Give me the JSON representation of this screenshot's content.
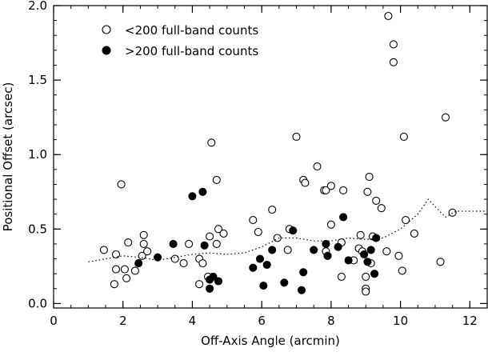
{
  "chart_data": {
    "type": "scatter",
    "title": "",
    "xlabel": "Off-Axis Angle (arcmin)",
    "ylabel": "Positional Offset (arcsec)",
    "xlim": [
      0,
      12.5
    ],
    "ylim": [
      -0.03,
      2.0
    ],
    "grid": false,
    "legend_position": "top-left",
    "x_major_ticks": [
      0,
      2,
      4,
      6,
      8,
      10,
      12
    ],
    "x_minor_step": 0.5,
    "x_tick_labels": [
      "0",
      "2",
      "4",
      "6",
      "8",
      "10",
      "12"
    ],
    "y_major_ticks": [
      0.0,
      0.5,
      1.0,
      1.5,
      2.0
    ],
    "y_minor_step": 0.1,
    "y_tick_labels": [
      "0.0",
      "0.5",
      "1.0",
      "1.5",
      "2.0"
    ],
    "series": [
      {
        "name": "<200 full-band counts",
        "marker": "open-circle",
        "color": "#000000",
        "points": [
          [
            1.45,
            0.36
          ],
          [
            1.75,
            0.13
          ],
          [
            1.8,
            0.33
          ],
          [
            1.8,
            0.23
          ],
          [
            1.95,
            0.8
          ],
          [
            2.05,
            0.23
          ],
          [
            2.1,
            0.17
          ],
          [
            2.15,
            0.41
          ],
          [
            2.35,
            0.22
          ],
          [
            2.55,
            0.32
          ],
          [
            2.6,
            0.46
          ],
          [
            2.6,
            0.4
          ],
          [
            2.7,
            0.35
          ],
          [
            3.5,
            0.3
          ],
          [
            3.75,
            0.27
          ],
          [
            3.9,
            0.4
          ],
          [
            4.2,
            0.3
          ],
          [
            4.2,
            0.13
          ],
          [
            4.3,
            0.27
          ],
          [
            4.45,
            0.18
          ],
          [
            4.5,
            0.45
          ],
          [
            4.55,
            1.08
          ],
          [
            4.7,
            0.4
          ],
          [
            4.7,
            0.83
          ],
          [
            4.75,
            0.5
          ],
          [
            4.9,
            0.47
          ],
          [
            5.75,
            0.56
          ],
          [
            5.9,
            0.48
          ],
          [
            6.3,
            0.63
          ],
          [
            6.45,
            0.44
          ],
          [
            6.75,
            0.36
          ],
          [
            6.8,
            0.5
          ],
          [
            7.0,
            1.12
          ],
          [
            7.2,
            0.83
          ],
          [
            7.25,
            0.81
          ],
          [
            7.6,
            0.92
          ],
          [
            7.8,
            0.76
          ],
          [
            7.85,
            0.76
          ],
          [
            7.85,
            0.35
          ],
          [
            7.9,
            0.32
          ],
          [
            8.0,
            0.79
          ],
          [
            8.0,
            0.53
          ],
          [
            8.3,
            0.41
          ],
          [
            8.3,
            0.18
          ],
          [
            8.35,
            0.76
          ],
          [
            8.65,
            0.29
          ],
          [
            8.8,
            0.37
          ],
          [
            8.85,
            0.46
          ],
          [
            8.9,
            0.35
          ],
          [
            9.0,
            0.18
          ],
          [
            9.0,
            0.1
          ],
          [
            9.0,
            0.08
          ],
          [
            9.05,
            0.75
          ],
          [
            9.1,
            0.85
          ],
          [
            9.15,
            0.27
          ],
          [
            9.2,
            0.45
          ],
          [
            9.3,
            0.69
          ],
          [
            9.45,
            0.64
          ],
          [
            9.6,
            0.35
          ],
          [
            9.65,
            1.93
          ],
          [
            9.8,
            1.74
          ],
          [
            9.8,
            1.62
          ],
          [
            9.95,
            0.32
          ],
          [
            10.05,
            0.22
          ],
          [
            10.1,
            1.12
          ],
          [
            10.15,
            0.56
          ],
          [
            10.4,
            0.47
          ],
          [
            11.15,
            0.28
          ],
          [
            11.3,
            1.25
          ],
          [
            11.5,
            0.61
          ]
        ]
      },
      {
        "name": ">200 full-band counts",
        "marker": "filled-circle",
        "color": "#000000",
        "points": [
          [
            2.45,
            0.27
          ],
          [
            3.0,
            0.31
          ],
          [
            3.45,
            0.4
          ],
          [
            4.0,
            0.72
          ],
          [
            4.3,
            0.75
          ],
          [
            4.35,
            0.39
          ],
          [
            4.5,
            0.16
          ],
          [
            4.5,
            0.1
          ],
          [
            4.6,
            0.18
          ],
          [
            4.75,
            0.15
          ],
          [
            5.75,
            0.24
          ],
          [
            5.95,
            0.3
          ],
          [
            6.05,
            0.12
          ],
          [
            6.15,
            0.26
          ],
          [
            6.3,
            0.36
          ],
          [
            6.65,
            0.14
          ],
          [
            6.9,
            0.49
          ],
          [
            7.15,
            0.09
          ],
          [
            7.2,
            0.21
          ],
          [
            7.5,
            0.36
          ],
          [
            7.85,
            0.4
          ],
          [
            7.9,
            0.32
          ],
          [
            8.2,
            0.38
          ],
          [
            8.35,
            0.58
          ],
          [
            8.5,
            0.29
          ],
          [
            8.95,
            0.33
          ],
          [
            9.05,
            0.28
          ],
          [
            9.15,
            0.36
          ],
          [
            9.25,
            0.2
          ],
          [
            9.3,
            0.44
          ]
        ]
      },
      {
        "name": "",
        "style": "dotted-line",
        "color": "#000000",
        "points": [
          [
            1.0,
            0.28
          ],
          [
            1.5,
            0.3
          ],
          [
            2.0,
            0.32
          ],
          [
            2.5,
            0.31
          ],
          [
            3.0,
            0.29
          ],
          [
            3.5,
            0.31
          ],
          [
            4.0,
            0.33
          ],
          [
            4.5,
            0.34
          ],
          [
            5.0,
            0.33
          ],
          [
            5.5,
            0.34
          ],
          [
            6.0,
            0.38
          ],
          [
            6.5,
            0.44
          ],
          [
            7.0,
            0.44
          ],
          [
            7.5,
            0.42
          ],
          [
            8.0,
            0.42
          ],
          [
            8.5,
            0.44
          ],
          [
            9.0,
            0.43
          ],
          [
            9.5,
            0.44
          ],
          [
            10.0,
            0.5
          ],
          [
            10.5,
            0.6
          ],
          [
            10.8,
            0.7
          ],
          [
            11.0,
            0.65
          ],
          [
            11.3,
            0.58
          ],
          [
            11.6,
            0.62
          ],
          [
            12.0,
            0.62
          ],
          [
            12.5,
            0.62
          ]
        ]
      }
    ]
  }
}
